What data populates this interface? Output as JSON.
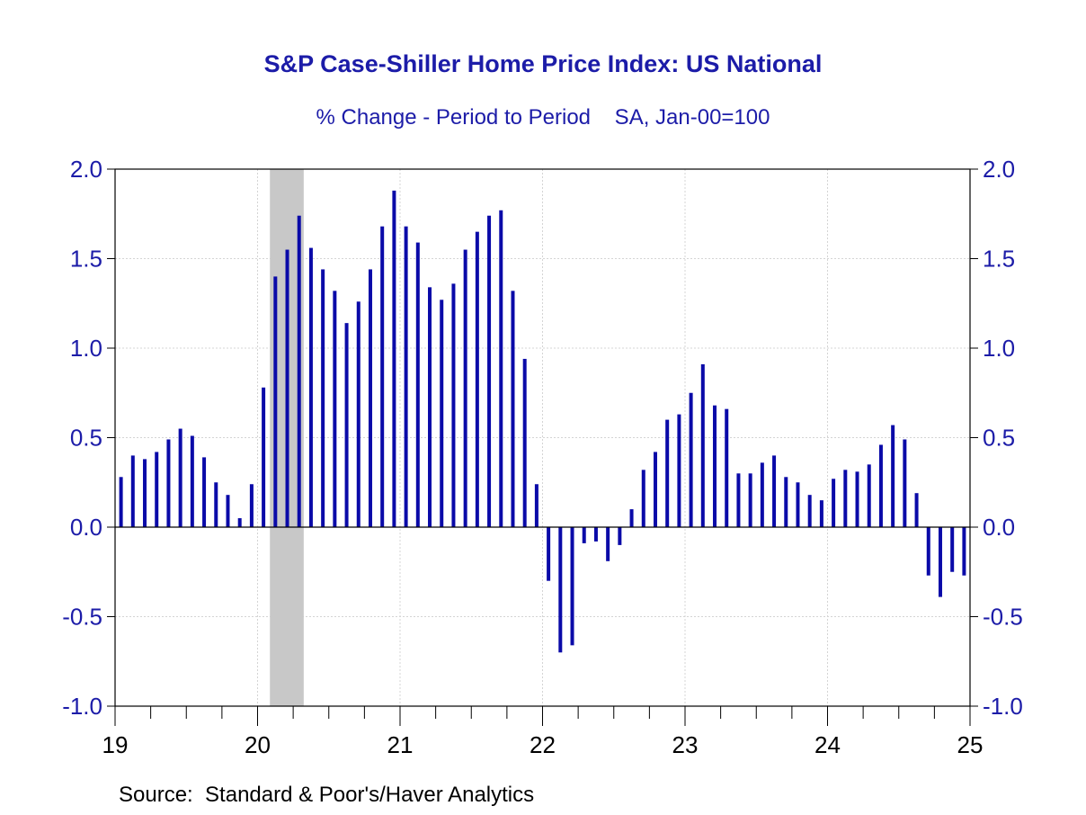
{
  "chart_data": {
    "type": "bar",
    "title": "S&P Case-Shiller Home Price Index: US National",
    "subtitle": "% Change - Period to Period    SA, Jan-00=100",
    "source": "Source:  Standard & Poor's/Haver Analytics",
    "ylim": [
      -1.0,
      2.0
    ],
    "y_ticks": [
      "2.0",
      "1.5",
      "1.0",
      "0.5",
      "0.0",
      "-0.5",
      "-1.0"
    ],
    "y_tick_values": [
      2.0,
      1.5,
      1.0,
      0.5,
      0.0,
      -0.5,
      -1.0
    ],
    "x_tick_labels": [
      "19",
      "20",
      "21",
      "22",
      "23",
      "24",
      "25"
    ],
    "x_start": "2019-01",
    "months_total": 72,
    "grid": true,
    "recession_shading": {
      "start": "2020-02",
      "end": "2020-04",
      "color": "#c8c8c8"
    },
    "bar_color": "#0a0aa8",
    "axis_color": "#1c1ca8",
    "values": [
      0.28,
      0.4,
      0.38,
      0.42,
      0.49,
      0.55,
      0.51,
      0.39,
      0.25,
      0.18,
      0.05,
      0.24,
      0.78,
      1.4,
      1.55,
      1.74,
      1.56,
      1.44,
      1.32,
      1.14,
      1.26,
      1.44,
      1.68,
      1.88,
      1.68,
      1.59,
      1.34,
      1.27,
      1.36,
      1.55,
      1.65,
      1.74,
      1.77,
      1.32,
      0.94,
      0.24,
      -0.3,
      -0.7,
      -0.66,
      -0.09,
      -0.08,
      -0.19,
      -0.1,
      0.1,
      0.32,
      0.42,
      0.6,
      0.63,
      0.75,
      0.91,
      0.68,
      0.66,
      0.3,
      0.3,
      0.36,
      0.4,
      0.28,
      0.25,
      0.18,
      0.15,
      0.27,
      0.32,
      0.31,
      0.35,
      0.46,
      0.57,
      0.49,
      0.19,
      -0.27,
      -0.39,
      -0.25,
      -0.27
    ]
  }
}
